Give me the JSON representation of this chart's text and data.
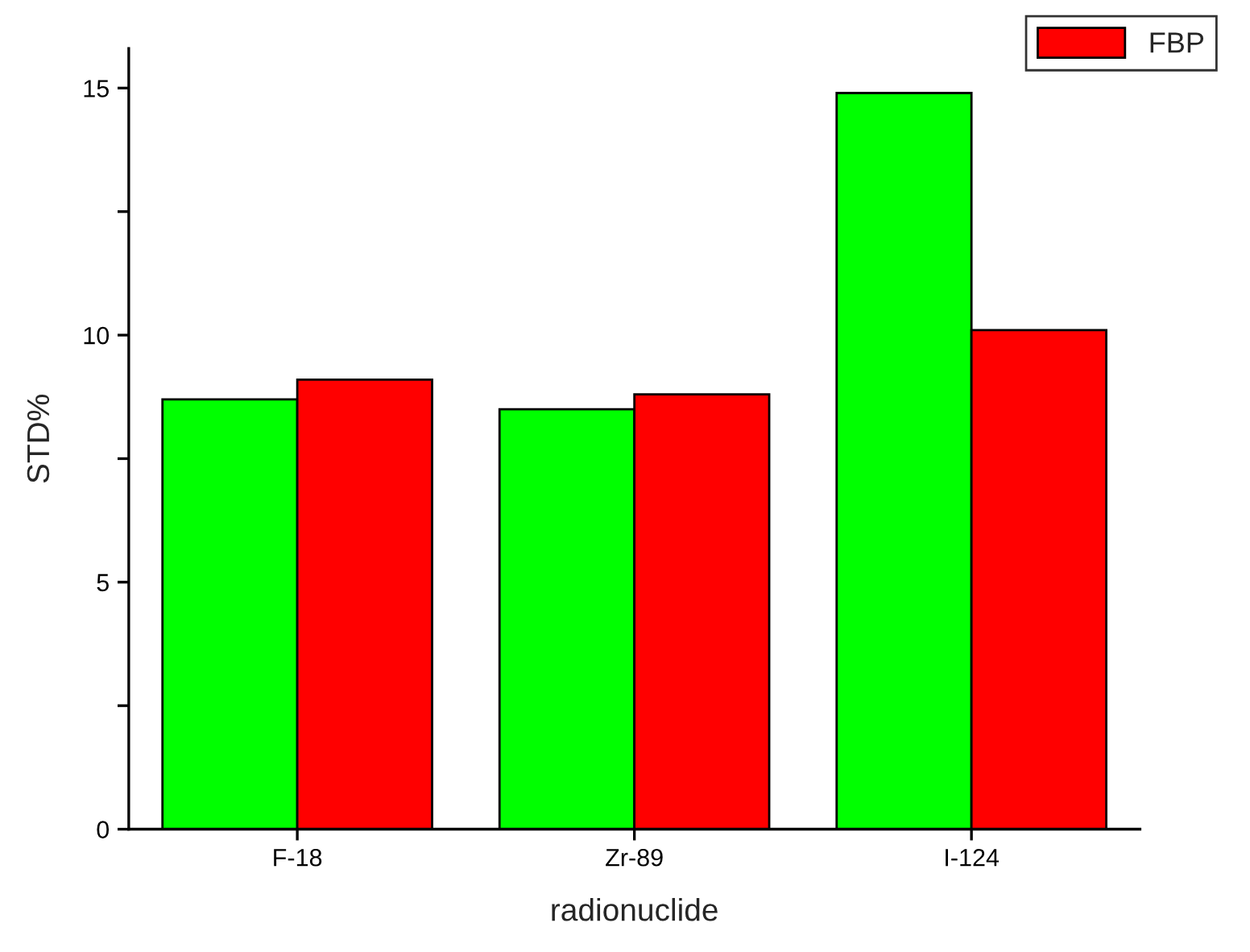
{
  "chart_data": {
    "type": "bar",
    "xlabel": "radionuclide",
    "ylabel": "STD%",
    "categories": [
      "F-18",
      "Zr-89",
      "I-124"
    ],
    "series": [
      {
        "color": "#00ff00",
        "values": [
          8.7,
          8.5,
          14.9
        ]
      },
      {
        "name": "FBP",
        "color": "#ff0000",
        "values": [
          9.1,
          8.8,
          10.1
        ]
      }
    ],
    "ylim": [
      0,
      15.8
    ],
    "yticks": [
      0,
      {
        "value": 2.5,
        "label": null
      },
      5,
      {
        "value": 7.5,
        "label": null
      },
      10,
      {
        "value": 12.5,
        "label": null
      },
      15
    ],
    "grid": false,
    "legend": "top right"
  }
}
